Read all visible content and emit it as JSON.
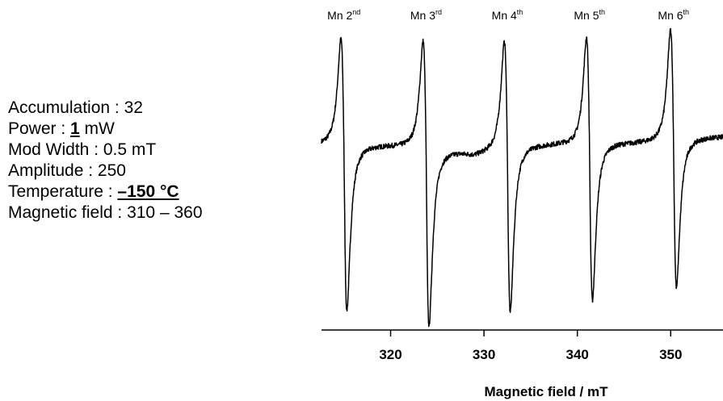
{
  "parameters": {
    "accumulation_label": "Accumulation : ",
    "accumulation_value": "32",
    "power_label": "Power : ",
    "power_value": "1",
    "power_unit": " mW",
    "modwidth_label": "Mod Width : ",
    "modwidth_value": "0.5 mT",
    "amplitude_label": "Amplitude : ",
    "amplitude_value": "250",
    "temperature_label": "Temperature : ",
    "temperature_value": "–150 °C",
    "field_label": "Magnetic field : ",
    "field_value": "310 – 360"
  },
  "chart_data": {
    "type": "line",
    "title": "",
    "xlabel": "Magnetic field / mT",
    "ylabel": "",
    "xlim": [
      312.6,
      355.6
    ],
    "xticks": [
      320,
      330,
      340,
      350
    ],
    "grid": false,
    "y_axis_shown": false,
    "marker_labels": [
      {
        "name": "Mn",
        "ord": "2",
        "suffix": "nd",
        "x": 315.0
      },
      {
        "name": "Mn",
        "ord": "3",
        "suffix": "rd",
        "x": 323.8
      },
      {
        "name": "Mn",
        "ord": "4",
        "suffix": "th",
        "x": 332.5
      },
      {
        "name": "Mn",
        "ord": "5",
        "suffix": "th",
        "x": 341.3
      },
      {
        "name": "Mn",
        "ord": "6",
        "suffix": "th",
        "x": 350.3
      }
    ],
    "series": [
      {
        "baseline_points": [
          [
            312.6,
            0.05
          ],
          [
            316.4,
            0.03
          ],
          [
            320.0,
            0.02
          ],
          [
            322.8,
            0.0
          ],
          [
            324.8,
            -0.08
          ],
          [
            327.0,
            -0.12
          ],
          [
            329.0,
            -0.2
          ],
          [
            331.2,
            -0.1
          ],
          [
            333.5,
            0.04
          ],
          [
            336.0,
            0.05
          ],
          [
            338.5,
            0.07
          ],
          [
            340.3,
            0.04
          ],
          [
            342.4,
            0.1
          ],
          [
            345.5,
            0.1
          ],
          [
            349.2,
            0.12
          ],
          [
            351.4,
            0.22
          ],
          [
            355.6,
            0.25
          ]
        ],
        "peaks": [
          {
            "x": 315.0,
            "max": 2.6,
            "min": -4.0
          },
          {
            "x": 323.8,
            "max": 2.6,
            "min": -4.3
          },
          {
            "x": 332.5,
            "max": 2.6,
            "min": -4.0
          },
          {
            "x": 341.3,
            "max": 2.6,
            "min": -3.8
          },
          {
            "x": 350.3,
            "max": 2.7,
            "min": -3.6
          }
        ]
      }
    ]
  }
}
